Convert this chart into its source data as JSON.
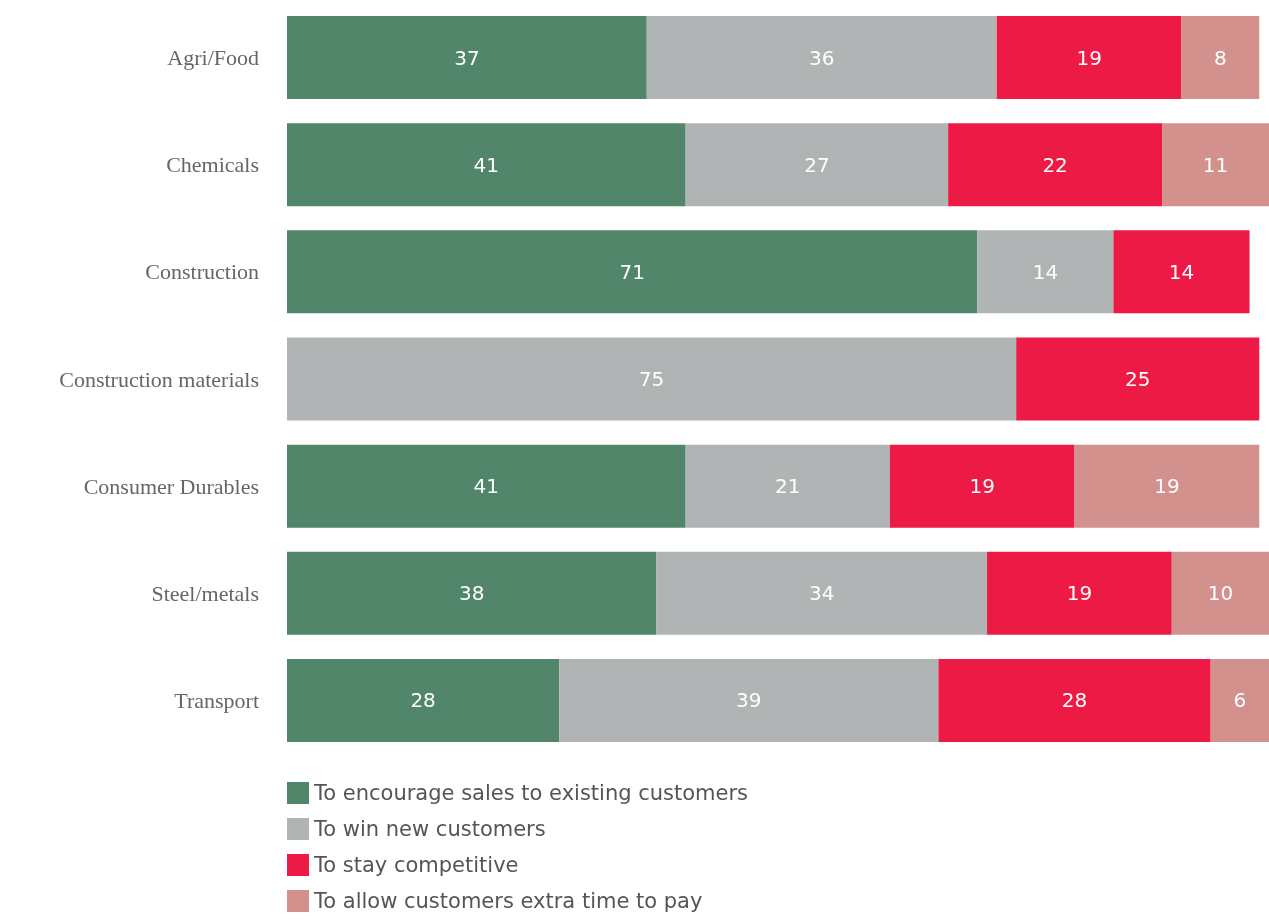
{
  "chart_data": {
    "type": "bar",
    "orientation": "horizontal",
    "stacked": true,
    "data_labels": true,
    "legend": "bottom left",
    "tick_labels": "y",
    "xlim": [
      0,
      101
    ],
    "categories": [
      "Agri/Food",
      "Chemicals",
      "Construction",
      "Construction materials",
      "Consumer Durables",
      "Steel/metals",
      "Transport"
    ],
    "series": [
      {
        "name": "To encourage sales to existing customers",
        "color": "#52866a",
        "values": [
          37,
          41,
          71,
          null,
          41,
          38,
          28
        ]
      },
      {
        "name": "To win new customers",
        "color": "#b1b4b5",
        "values": [
          36,
          27,
          14,
          75,
          21,
          34,
          39
        ]
      },
      {
        "name": "To stay competitive",
        "color": "#ee1a46",
        "values": [
          19,
          22,
          14,
          25,
          19,
          19,
          28
        ]
      },
      {
        "name": "To allow customers extra time to pay",
        "color": "#d3918e",
        "values": [
          8,
          11,
          null,
          null,
          19,
          10,
          6
        ]
      }
    ]
  }
}
